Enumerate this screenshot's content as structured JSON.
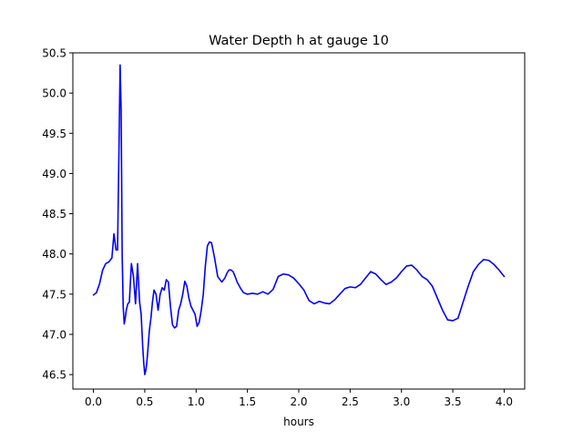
{
  "chart_data": {
    "type": "line",
    "title": "Water Depth h at gauge 10",
    "xlabel": "hours",
    "ylabel": "",
    "xlim": [
      -0.2,
      4.2
    ],
    "ylim": [
      46.32,
      50.5
    ],
    "grid": false,
    "xticks": [
      0.0,
      0.5,
      1.0,
      1.5,
      2.0,
      2.5,
      3.0,
      3.5,
      4.0
    ],
    "xtick_labels": [
      "0.0",
      "0.5",
      "1.0",
      "1.5",
      "2.0",
      "2.5",
      "3.0",
      "3.5",
      "4.0"
    ],
    "yticks": [
      46.5,
      47.0,
      47.5,
      48.0,
      48.5,
      49.0,
      49.5,
      50.0,
      50.5
    ],
    "ytick_labels": [
      "46.5",
      "47.0",
      "47.5",
      "48.0",
      "48.5",
      "49.0",
      "49.5",
      "50.0",
      "50.5"
    ],
    "series": [
      {
        "color": "#0000ff",
        "x": [
          0.0,
          0.03,
          0.06,
          0.09,
          0.12,
          0.15,
          0.18,
          0.2,
          0.22,
          0.235,
          0.25,
          0.26,
          0.27,
          0.28,
          0.29,
          0.3,
          0.31,
          0.32,
          0.335,
          0.35,
          0.37,
          0.39,
          0.41,
          0.43,
          0.45,
          0.465,
          0.48,
          0.49,
          0.5,
          0.51,
          0.52,
          0.53,
          0.545,
          0.56,
          0.575,
          0.59,
          0.61,
          0.63,
          0.65,
          0.67,
          0.69,
          0.71,
          0.73,
          0.75,
          0.77,
          0.79,
          0.81,
          0.83,
          0.85,
          0.87,
          0.89,
          0.91,
          0.93,
          0.95,
          0.97,
          0.99,
          1.01,
          1.03,
          1.05,
          1.07,
          1.09,
          1.11,
          1.13,
          1.15,
          1.18,
          1.21,
          1.25,
          1.28,
          1.3,
          1.32,
          1.34,
          1.36,
          1.38,
          1.4,
          1.43,
          1.46,
          1.5,
          1.55,
          1.6,
          1.65,
          1.7,
          1.75,
          1.8,
          1.85,
          1.9,
          1.95,
          2.0,
          2.05,
          2.1,
          2.15,
          2.2,
          2.25,
          2.3,
          2.35,
          2.4,
          2.45,
          2.5,
          2.55,
          2.6,
          2.65,
          2.7,
          2.75,
          2.8,
          2.85,
          2.9,
          2.95,
          3.0,
          3.05,
          3.1,
          3.15,
          3.2,
          3.25,
          3.3,
          3.35,
          3.4,
          3.45,
          3.5,
          3.55,
          3.6,
          3.65,
          3.7,
          3.75,
          3.8,
          3.85,
          3.9,
          3.95,
          4.0
        ],
        "y": [
          47.49,
          47.52,
          47.63,
          47.8,
          47.88,
          47.9,
          47.95,
          48.25,
          48.05,
          48.05,
          49.4,
          50.35,
          49.8,
          48.0,
          47.35,
          47.13,
          47.2,
          47.3,
          47.38,
          47.4,
          47.88,
          47.72,
          47.38,
          47.88,
          47.4,
          47.25,
          46.85,
          46.65,
          46.5,
          46.55,
          46.65,
          46.8,
          47.05,
          47.2,
          47.4,
          47.55,
          47.5,
          47.3,
          47.5,
          47.58,
          47.55,
          47.68,
          47.65,
          47.35,
          47.12,
          47.08,
          47.1,
          47.3,
          47.38,
          47.5,
          47.66,
          47.6,
          47.45,
          47.35,
          47.3,
          47.25,
          47.1,
          47.15,
          47.3,
          47.5,
          47.85,
          48.1,
          48.15,
          48.14,
          47.95,
          47.72,
          47.65,
          47.7,
          47.76,
          47.8,
          47.8,
          47.78,
          47.72,
          47.65,
          47.58,
          47.52,
          47.5,
          47.51,
          47.5,
          47.53,
          47.5,
          47.56,
          47.72,
          47.75,
          47.74,
          47.7,
          47.63,
          47.55,
          47.42,
          47.38,
          47.41,
          47.39,
          47.38,
          47.43,
          47.5,
          47.57,
          47.59,
          47.58,
          47.62,
          47.7,
          47.78,
          47.75,
          47.68,
          47.62,
          47.65,
          47.7,
          47.78,
          47.85,
          47.86,
          47.8,
          47.72,
          47.68,
          47.6,
          47.45,
          47.3,
          47.18,
          47.17,
          47.2,
          47.4,
          47.6,
          47.78,
          47.87,
          47.93,
          47.92,
          47.87,
          47.8,
          47.72
        ]
      }
    ]
  }
}
